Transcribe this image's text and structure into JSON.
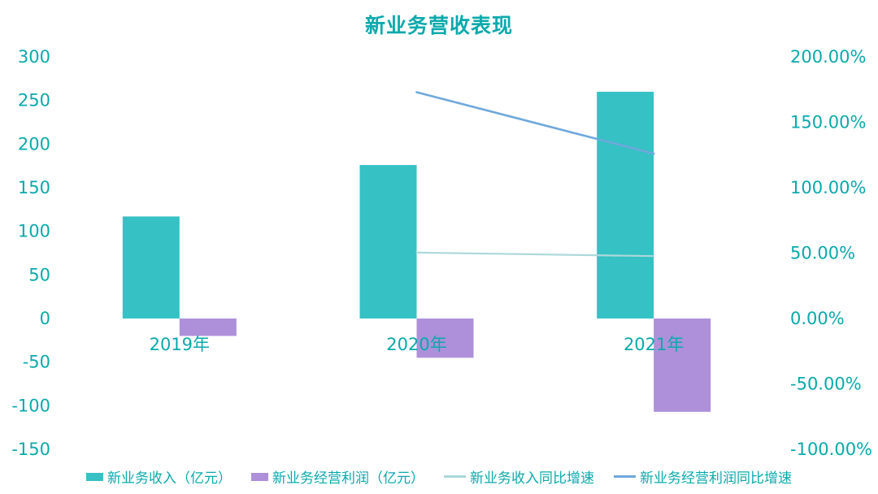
{
  "chart_data": {
    "type": "bar",
    "subtype": "combo-bar-line-dual-axis",
    "title": "新业务营收表现",
    "categories": [
      "2019年",
      "2020年",
      "2021年"
    ],
    "series": [
      {
        "name": "新业务收入（亿元）",
        "kind": "bar",
        "axis": "left",
        "color": "#36C1C4",
        "values": [
          117,
          176,
          260
        ]
      },
      {
        "name": "新业务经营利润（亿元）",
        "kind": "bar",
        "axis": "left",
        "color": "#AD90D9",
        "values": [
          -20,
          -45,
          -107
        ]
      },
      {
        "name": "新业务收入同比增速",
        "kind": "line",
        "axis": "right",
        "color": "#ADD8DA",
        "values": [
          null,
          50.4,
          47.7
        ],
        "unit": "%"
      },
      {
        "name": "新业务经营利润同比增速",
        "kind": "line",
        "axis": "right",
        "color": "#6FA8DC",
        "values": [
          null,
          173,
          126
        ],
        "unit": "%"
      }
    ],
    "left_axis": {
      "min": -150,
      "max": 300,
      "step": 50,
      "tick_labels": [
        "300",
        "250",
        "200",
        "150",
        "100",
        "50",
        "0",
        "-50",
        "-100",
        "-150"
      ]
    },
    "right_axis": {
      "min": -100,
      "max": 200,
      "step": 50,
      "tick_labels": [
        "200.00%",
        "150.00%",
        "100.00%",
        "50.00%",
        "0.00%",
        "-50.00%",
        "-100.00%"
      ]
    },
    "grid": false,
    "legend_position": "bottom",
    "colors": {
      "text": "#0AA9AC",
      "background": "#FFFFFF"
    }
  }
}
